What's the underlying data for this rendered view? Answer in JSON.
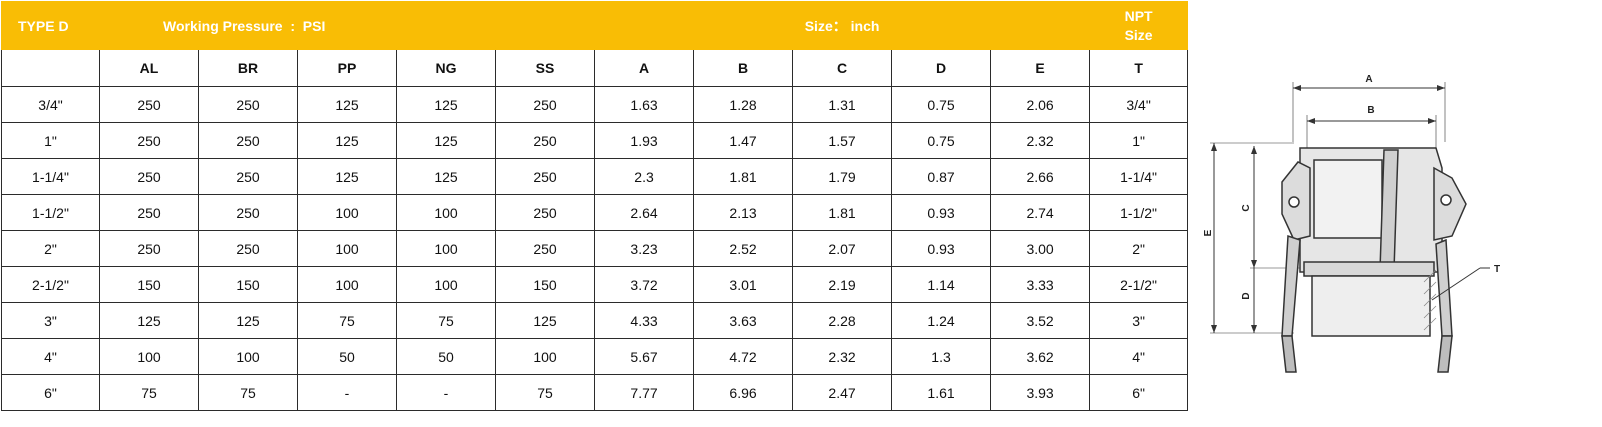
{
  "table": {
    "header_band": {
      "type": "TYPE D",
      "pressure": "Working Pressure  :  PSI",
      "size": "Size： inch",
      "npt_line1": "NPT",
      "npt_line2": "Size"
    },
    "columns": [
      "",
      "AL",
      "BR",
      "PP",
      "NG",
      "SS",
      "A",
      "B",
      "C",
      "D",
      "E",
      "T"
    ],
    "rows": [
      [
        "3/4\"",
        "250",
        "250",
        "125",
        "125",
        "250",
        "1.63",
        "1.28",
        "1.31",
        "0.75",
        "2.06",
        "3/4\""
      ],
      [
        "1\"",
        "250",
        "250",
        "125",
        "125",
        "250",
        "1.93",
        "1.47",
        "1.57",
        "0.75",
        "2.32",
        "1\""
      ],
      [
        "1-1/4\"",
        "250",
        "250",
        "125",
        "125",
        "250",
        "2.3",
        "1.81",
        "1.79",
        "0.87",
        "2.66",
        "1-1/4\""
      ],
      [
        "1-1/2\"",
        "250",
        "250",
        "100",
        "100",
        "250",
        "2.64",
        "2.13",
        "1.81",
        "0.93",
        "2.74",
        "1-1/2\""
      ],
      [
        "2\"",
        "250",
        "250",
        "100",
        "100",
        "250",
        "3.23",
        "2.52",
        "2.07",
        "0.93",
        "3.00",
        "2\""
      ],
      [
        "2-1/2\"",
        "150",
        "150",
        "100",
        "100",
        "150",
        "3.72",
        "3.01",
        "2.19",
        "1.14",
        "3.33",
        "2-1/2\""
      ],
      [
        "3\"",
        "125",
        "125",
        "75",
        "75",
        "125",
        "4.33",
        "3.63",
        "2.28",
        "1.24",
        "3.52",
        "3\""
      ],
      [
        "4\"",
        "100",
        "100",
        "50",
        "50",
        "100",
        "5.67",
        "4.72",
        "2.32",
        "1.3",
        "3.62",
        "4\""
      ],
      [
        "6\"",
        "75",
        "75",
        "-",
        "-",
        "75",
        "7.77",
        "6.96",
        "2.47",
        "1.61",
        "3.93",
        "6\""
      ]
    ]
  },
  "drawing": {
    "dimension_labels": {
      "a": "A",
      "b": "B",
      "c": "C",
      "d": "D",
      "e": "E",
      "t": "T"
    },
    "colors": {
      "line": "#333333",
      "fill": "#e6e6e6",
      "accent": "#f9bd05"
    }
  }
}
